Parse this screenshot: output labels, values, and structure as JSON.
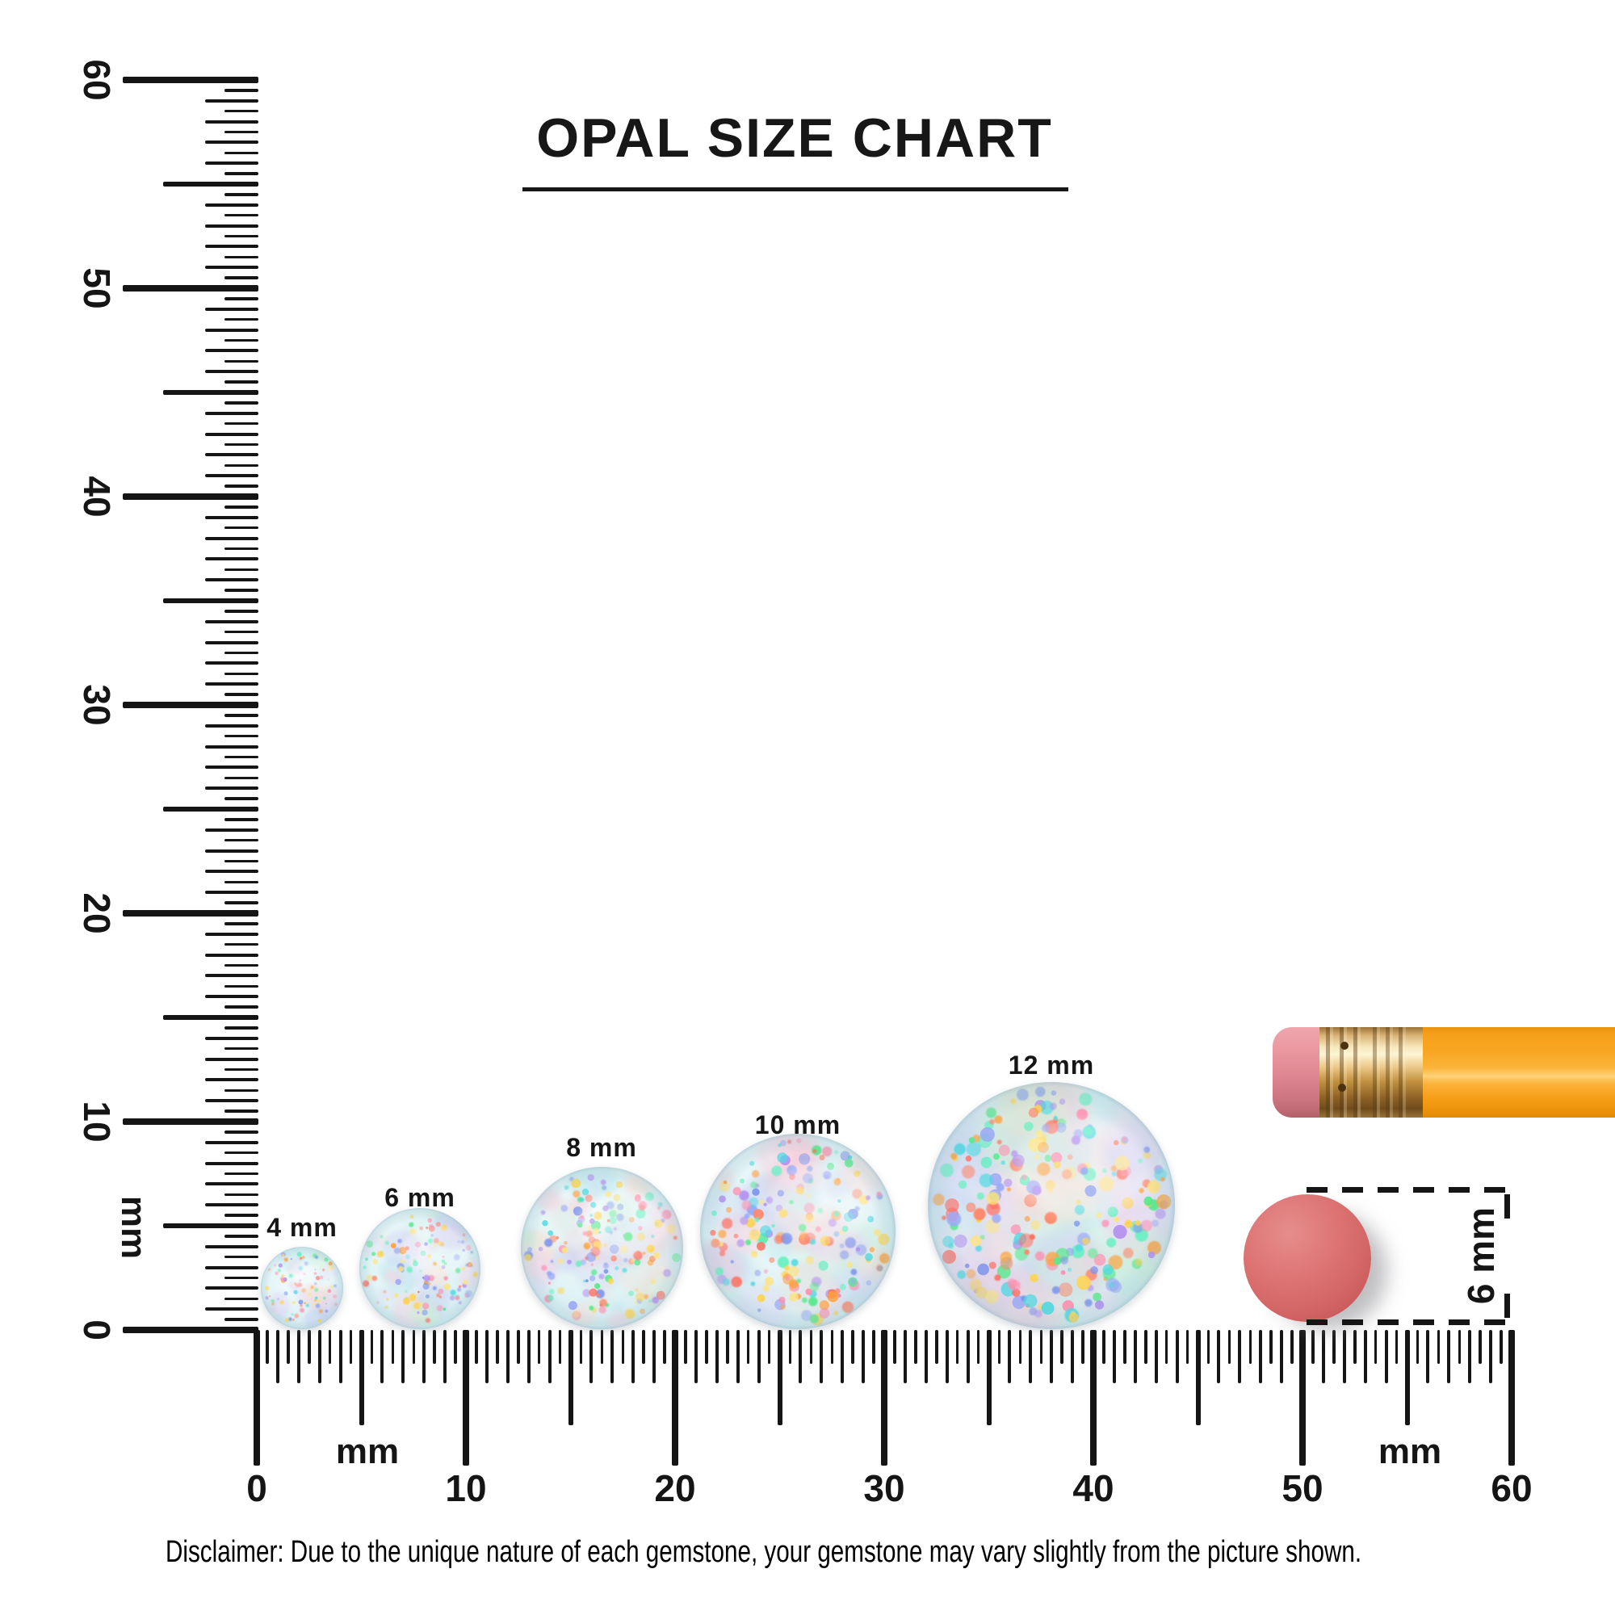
{
  "title": {
    "text": "OPAL SIZE CHART"
  },
  "rulers": {
    "unit": "mm",
    "vertical": {
      "major_labels": [
        "0",
        "10",
        "20",
        "30",
        "40",
        "50",
        "60"
      ],
      "unit_label": "mm"
    },
    "horizontal": {
      "major_labels": [
        "0",
        "10",
        "20",
        "30",
        "40",
        "50",
        "60"
      ],
      "unit_label_left": "mm",
      "unit_label_right": "mm"
    }
  },
  "opals": [
    {
      "label": "4 mm",
      "size_mm": 4
    },
    {
      "label": "6 mm",
      "size_mm": 6
    },
    {
      "label": "8 mm",
      "size_mm": 8
    },
    {
      "label": "10 mm",
      "size_mm": 10
    },
    {
      "label": "12 mm",
      "size_mm": 12
    }
  ],
  "reference_objects": {
    "pencil": {
      "body_color": "#f6a11d",
      "ferrule_color": "#c9953e",
      "eraser_color": "#e59aa2"
    },
    "eraser_disc": {
      "label": "6 mm",
      "size_mm": 6,
      "color": "#d96a6a"
    }
  },
  "disclaimer": "Disclaimer: Due to the unique nature of each gemstone, your gemstone may vary slightly from the picture shown.",
  "opal_palette": {
    "base_stops": [
      "#f5fcfd",
      "#e3f4f6",
      "#d2ebf1",
      "#c5dfe9"
    ],
    "patches": [
      "#bfe9ee",
      "#c6cff2",
      "#f6cfdd",
      "#cdeed6",
      "#e3d7f6",
      "#f8ddd2",
      "#d9f1f0",
      "#f1d7ea"
    ],
    "flecks": [
      "#ff8668",
      "#ffa13d",
      "#ffd44e",
      "#57e98c",
      "#7f95ec",
      "#ff8fb0",
      "#b18ef0",
      "#4fd9e3",
      "#ff6f62",
      "#ffe37d",
      "#63f0c1",
      "#9aa9f5"
    ]
  }
}
